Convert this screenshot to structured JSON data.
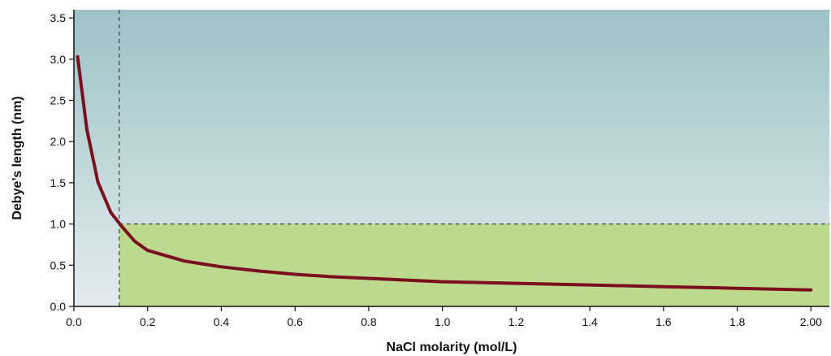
{
  "chart_data": {
    "type": "line",
    "title": "",
    "xlabel": "NaCl molarity (mol/L)",
    "ylabel": "Debye’s length (nm)",
    "xlim": [
      0,
      2.05
    ],
    "ylim": [
      0,
      3.6
    ],
    "xticks": [
      0.0,
      0.2,
      0.4,
      0.6,
      0.8,
      1.0,
      1.2,
      1.4,
      1.6,
      1.8,
      2.0
    ],
    "xtick_labels": [
      "0.0",
      "0.2",
      "0.4",
      "0.6",
      "0.8",
      "1.0",
      "1.2",
      "1.4",
      "1.6",
      "1.8",
      "2.00"
    ],
    "yticks": [
      0.0,
      0.5,
      1.0,
      1.5,
      2.0,
      2.5,
      3.0,
      3.5
    ],
    "ytick_labels": [
      "0.0",
      "0.5",
      "1.0",
      "1.5",
      "2.0",
      "2.5",
      "3.0",
      "3.5"
    ],
    "grid": false,
    "series": [
      {
        "x": [
          0.01,
          0.035,
          0.065,
          0.1,
          0.13,
          0.165,
          0.2,
          0.3,
          0.4,
          0.5,
          0.6,
          0.7,
          0.8,
          1.0,
          1.2,
          1.4,
          1.6,
          1.8,
          2.0
        ],
        "y": [
          3.03,
          2.15,
          1.51,
          1.14,
          0.97,
          0.79,
          0.68,
          0.55,
          0.48,
          0.43,
          0.39,
          0.36,
          0.34,
          0.3,
          0.28,
          0.26,
          0.24,
          0.22,
          0.2
        ]
      }
    ],
    "reference_lines": {
      "vertical_x": 0.123,
      "horizontal_y": 1.0
    },
    "regions": {
      "highlight": {
        "x_from": 0.123,
        "x_to": 2.05,
        "y_from": 0.0,
        "y_to": 1.0
      }
    },
    "colors": {
      "line": "#7a0f1e",
      "highlight_fill": "#bcd98e",
      "background_top": "#9dc2c6",
      "background_bottom": "#e2ecef",
      "axis": "#111111",
      "dash": "#222222"
    }
  }
}
